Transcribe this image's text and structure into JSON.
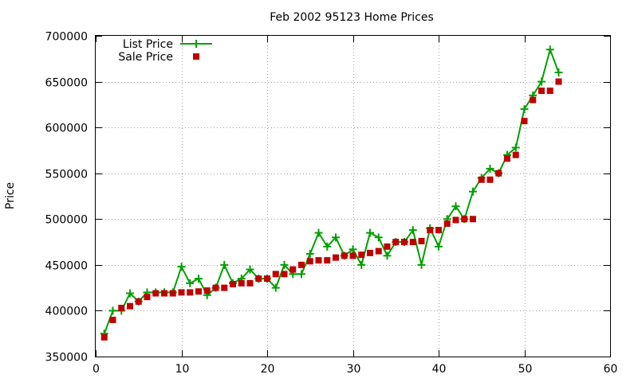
{
  "chart_data": {
    "type": "line",
    "title": "Feb 2002 95123 Home Prices",
    "xlabel": "",
    "ylabel": "Price",
    "xlim": [
      0,
      60
    ],
    "ylim": [
      350000,
      700000
    ],
    "xticks": [
      0,
      10,
      20,
      30,
      40,
      50,
      60
    ],
    "yticks": [
      350000,
      400000,
      450000,
      500000,
      550000,
      600000,
      650000,
      700000
    ],
    "grid": true,
    "legend_position": "top-left",
    "series": [
      {
        "name": "List Price",
        "style": "linespoints",
        "color": "#00a000",
        "marker": "plus",
        "x": [
          1,
          2,
          3,
          4,
          5,
          6,
          7,
          8,
          9,
          10,
          11,
          12,
          13,
          14,
          15,
          16,
          17,
          18,
          19,
          20,
          21,
          22,
          23,
          24,
          25,
          26,
          27,
          28,
          29,
          30,
          31,
          32,
          33,
          34,
          35,
          36,
          37,
          38,
          39,
          40,
          41,
          42,
          43,
          44,
          45,
          46,
          47,
          48,
          49,
          50,
          51,
          52,
          53,
          54
        ],
        "y": [
          375000,
          400000,
          400000,
          419000,
          410000,
          420000,
          420000,
          420000,
          420000,
          448000,
          430000,
          435000,
          417000,
          425000,
          450000,
          430000,
          435000,
          445000,
          435000,
          435000,
          425000,
          450000,
          440000,
          440000,
          462000,
          485000,
          470000,
          480000,
          460000,
          467000,
          450000,
          485000,
          480000,
          460000,
          475000,
          475000,
          488000,
          450000,
          490000,
          470000,
          500000,
          514000,
          500000,
          530000,
          545000,
          555000,
          550000,
          570000,
          578000,
          620000,
          635000,
          650000,
          685000,
          660000
        ]
      },
      {
        "name": "Sale Price",
        "style": "points",
        "color": "#c00000",
        "marker": "square",
        "x": [
          1,
          2,
          3,
          4,
          5,
          6,
          7,
          8,
          9,
          10,
          11,
          12,
          13,
          14,
          15,
          16,
          17,
          18,
          19,
          20,
          21,
          22,
          23,
          24,
          25,
          26,
          27,
          28,
          29,
          30,
          31,
          32,
          33,
          34,
          35,
          36,
          37,
          38,
          39,
          40,
          41,
          42,
          43,
          44,
          45,
          46,
          47,
          48,
          49,
          50,
          51,
          52,
          53,
          54
        ],
        "y": [
          371000,
          390000,
          403000,
          405000,
          410000,
          415000,
          419000,
          419000,
          419000,
          420000,
          420000,
          421000,
          422000,
          425000,
          425000,
          429000,
          430000,
          430000,
          435000,
          435000,
          440000,
          440000,
          445000,
          450000,
          454000,
          455000,
          455000,
          458000,
          460000,
          460000,
          461000,
          463000,
          465000,
          470000,
          475000,
          475000,
          475000,
          476000,
          488000,
          488000,
          495000,
          499000,
          500000,
          500000,
          543000,
          543000,
          550000,
          566000,
          570000,
          607000,
          630000,
          640000,
          640000,
          650000
        ]
      }
    ]
  }
}
